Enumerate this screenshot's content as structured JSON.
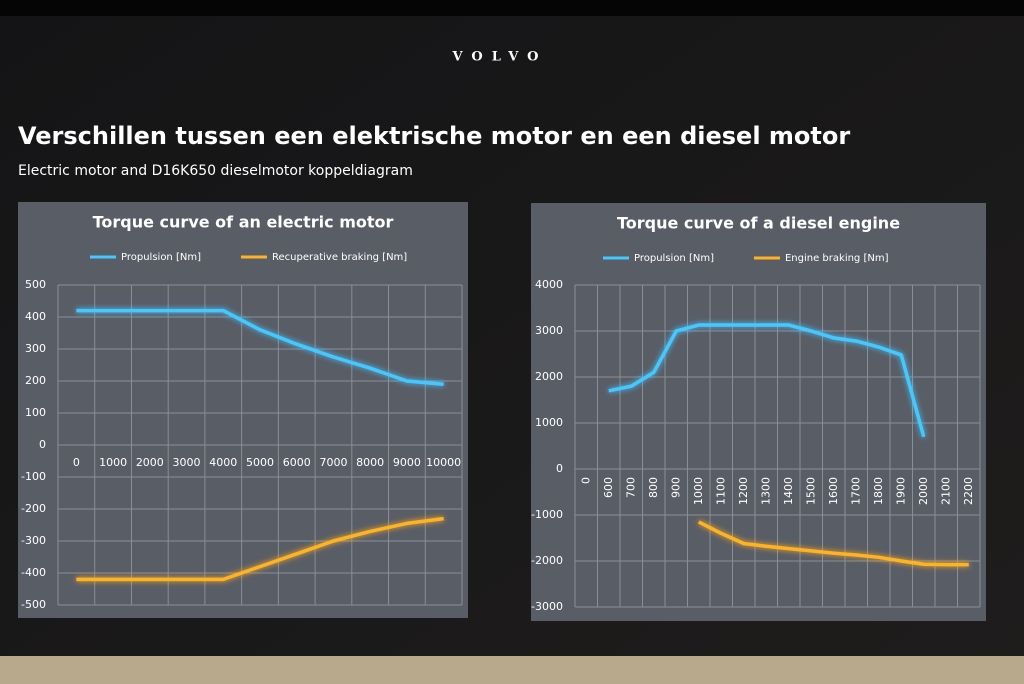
{
  "header": {
    "brand": "VOLVO",
    "title": "Verschillen tussen een elektrische motor en een diesel motor",
    "subtitle": "Electric motor and D16K650 dieselmotor koppeldiagram"
  },
  "chart_data": [
    {
      "type": "line",
      "title": "Torque curve of an electric motor",
      "categories": [
        "0",
        "1000",
        "2000",
        "3000",
        "4000",
        "5000",
        "6000",
        "7000",
        "8000",
        "9000",
        "10000"
      ],
      "series": [
        {
          "name": "Propulsion [Nm]",
          "color": "#45c8ff",
          "values": [
            420,
            420,
            420,
            420,
            420,
            360,
            315,
            275,
            240,
            200,
            190
          ]
        },
        {
          "name": "Recuperative braking [Nm]",
          "color": "#ffb224",
          "values": [
            -420,
            -420,
            -420,
            -420,
            -420,
            -380,
            -340,
            -300,
            -270,
            -245,
            -230
          ]
        }
      ],
      "ylim": [
        -500,
        500
      ],
      "yticks": [
        -500,
        -400,
        -300,
        -200,
        -100,
        0,
        100,
        200,
        300,
        400,
        500
      ],
      "grid": true
    },
    {
      "type": "line",
      "title": "Torque curve of a diesel engine",
      "categories": [
        "0",
        "600",
        "700",
        "800",
        "900",
        "1000",
        "1100",
        "1200",
        "1300",
        "1400",
        "1500",
        "1600",
        "1700",
        "1800",
        "1900",
        "2000",
        "2100",
        "2200"
      ],
      "series": [
        {
          "name": "Propulsion [Nm]",
          "color": "#45c8ff",
          "values": [
            null,
            1700,
            1800,
            2100,
            3000,
            3130,
            3130,
            3130,
            3130,
            3130,
            3000,
            2850,
            2780,
            2650,
            2480,
            700,
            null,
            null
          ]
        },
        {
          "name": "Engine braking [Nm]",
          "color": "#ffb224",
          "values": [
            null,
            null,
            null,
            null,
            null,
            -1150,
            -1400,
            -1620,
            -1680,
            -1730,
            -1780,
            -1830,
            -1870,
            -1920,
            -2000,
            -2070,
            -2080,
            -2080
          ]
        }
      ],
      "ylim": [
        -3000,
        4000
      ],
      "yticks": [
        -3000,
        -2000,
        -1000,
        0,
        1000,
        2000,
        3000,
        4000
      ],
      "grid": true,
      "rotate_x_labels": true
    }
  ]
}
